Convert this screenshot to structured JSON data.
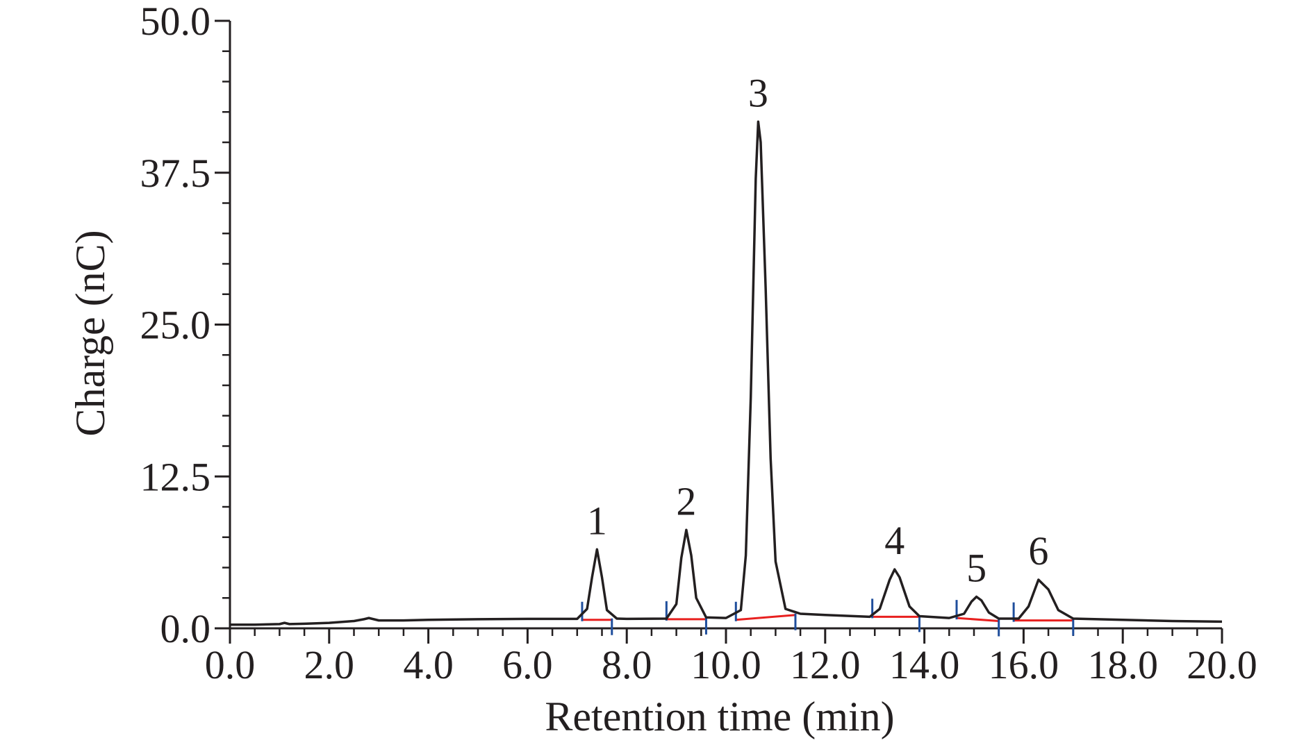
{
  "chart_data": {
    "type": "line",
    "x_label": "Retention time (min)",
    "y_label": "Charge (nC)",
    "x": [
      0,
      0.5,
      1.0,
      1.1,
      1.2,
      1.5,
      2.0,
      2.5,
      2.7,
      2.8,
      2.9,
      3.0,
      3.5,
      4.0,
      5.0,
      6.0,
      7.0,
      7.2,
      7.3,
      7.4,
      7.5,
      7.6,
      7.8,
      8.0,
      8.8,
      9.0,
      9.1,
      9.2,
      9.3,
      9.4,
      9.6,
      10.0,
      10.3,
      10.4,
      10.5,
      10.6,
      10.65,
      10.7,
      10.8,
      10.9,
      11.0,
      11.2,
      11.5,
      12.0,
      12.9,
      13.1,
      13.3,
      13.4,
      13.5,
      13.7,
      13.9,
      14.5,
      14.8,
      14.95,
      15.05,
      15.15,
      15.3,
      15.5,
      15.9,
      16.1,
      16.3,
      16.5,
      16.7,
      17.0,
      18.0,
      19.0,
      20.0
    ],
    "values": [
      0.3,
      0.3,
      0.35,
      0.45,
      0.35,
      0.38,
      0.45,
      0.6,
      0.75,
      0.85,
      0.75,
      0.65,
      0.65,
      0.7,
      0.75,
      0.78,
      0.78,
      1.6,
      4.2,
      6.5,
      4.2,
      1.5,
      0.8,
      0.78,
      0.8,
      2.0,
      5.8,
      8.1,
      6.0,
      2.5,
      0.9,
      0.85,
      1.5,
      6.0,
      19,
      37,
      41.7,
      40,
      28,
      14,
      5.5,
      1.6,
      1.2,
      1.1,
      0.95,
      1.6,
      4.0,
      4.85,
      4.2,
      1.8,
      1.0,
      0.85,
      1.2,
      2.2,
      2.6,
      2.3,
      1.3,
      0.8,
      0.8,
      1.8,
      4.0,
      3.2,
      1.5,
      0.8,
      0.7,
      0.6,
      0.55
    ],
    "color": "#231f20",
    "baselines": [
      {
        "x": [
          7.1,
          7.7
        ],
        "values": [
          0.7,
          0.7
        ],
        "color": "#e8201f",
        "marker_color": "#1f4e9c"
      },
      {
        "x": [
          8.8,
          9.6
        ],
        "values": [
          0.75,
          0.75
        ],
        "color": "#e8201f",
        "marker_color": "#1f4e9c"
      },
      {
        "x": [
          10.2,
          11.4
        ],
        "values": [
          0.7,
          1.1
        ],
        "color": "#e8201f",
        "marker_color": "#1f4e9c"
      },
      {
        "x": [
          12.95,
          13.9
        ],
        "values": [
          0.95,
          0.95
        ],
        "color": "#e8201f",
        "marker_color": "#1f4e9c"
      },
      {
        "x": [
          14.65,
          15.5
        ],
        "values": [
          0.85,
          0.6
        ],
        "color": "#e8201f",
        "marker_color": "#1f4e9c"
      },
      {
        "x": [
          15.8,
          17.0
        ],
        "values": [
          0.65,
          0.65
        ],
        "color": "#e8201f",
        "marker_color": "#1f4e9c"
      }
    ],
    "peaks": [
      {
        "label": "1",
        "x": 7.4,
        "y": 6.5
      },
      {
        "label": "2",
        "x": 9.2,
        "y": 8.1
      },
      {
        "label": "3",
        "x": 10.65,
        "y": 41.7
      },
      {
        "label": "4",
        "x": 13.4,
        "y": 4.85
      },
      {
        "label": "5",
        "x": 15.05,
        "y": 2.6
      },
      {
        "label": "6",
        "x": 16.3,
        "y": 4.0
      }
    ],
    "xlim": [
      0,
      20
    ],
    "ylim": [
      0,
      50
    ],
    "xticks": [
      {
        "value": 0,
        "label": "0.0"
      },
      {
        "value": 2,
        "label": "2.0"
      },
      {
        "value": 4,
        "label": "4.0"
      },
      {
        "value": 6,
        "label": "6.0"
      },
      {
        "value": 8,
        "label": "8.0"
      },
      {
        "value": 10,
        "label": "10.0"
      },
      {
        "value": 12,
        "label": "12.0"
      },
      {
        "value": 14,
        "label": "14.0"
      },
      {
        "value": 16,
        "label": "16.0"
      },
      {
        "value": 18,
        "label": "18.0"
      },
      {
        "value": 20,
        "label": "20.0"
      }
    ],
    "yticks": [
      {
        "value": 0,
        "label": "0.0"
      },
      12.5,
      {
        "value": 25,
        "label": "25.0"
      },
      37.5,
      {
        "value": 50,
        "label": "50.0"
      }
    ],
    "xminorticks": [
      0.5,
      1,
      1.5,
      2.5,
      3,
      3.5,
      4.5,
      5,
      5.5,
      6.5,
      7,
      7.5,
      8.5,
      9,
      9.5,
      10.5,
      11,
      11.5,
      12.5,
      13,
      13.5,
      14.5,
      15,
      15.5,
      16.5,
      17,
      17.5,
      18.5,
      19,
      19.5
    ],
    "yminorticks": [
      2.5,
      5,
      7.5,
      10,
      15,
      17.5,
      20,
      22.5,
      27.5,
      30,
      32.5,
      35,
      40,
      42.5,
      45,
      47.5
    ],
    "grid": false
  }
}
